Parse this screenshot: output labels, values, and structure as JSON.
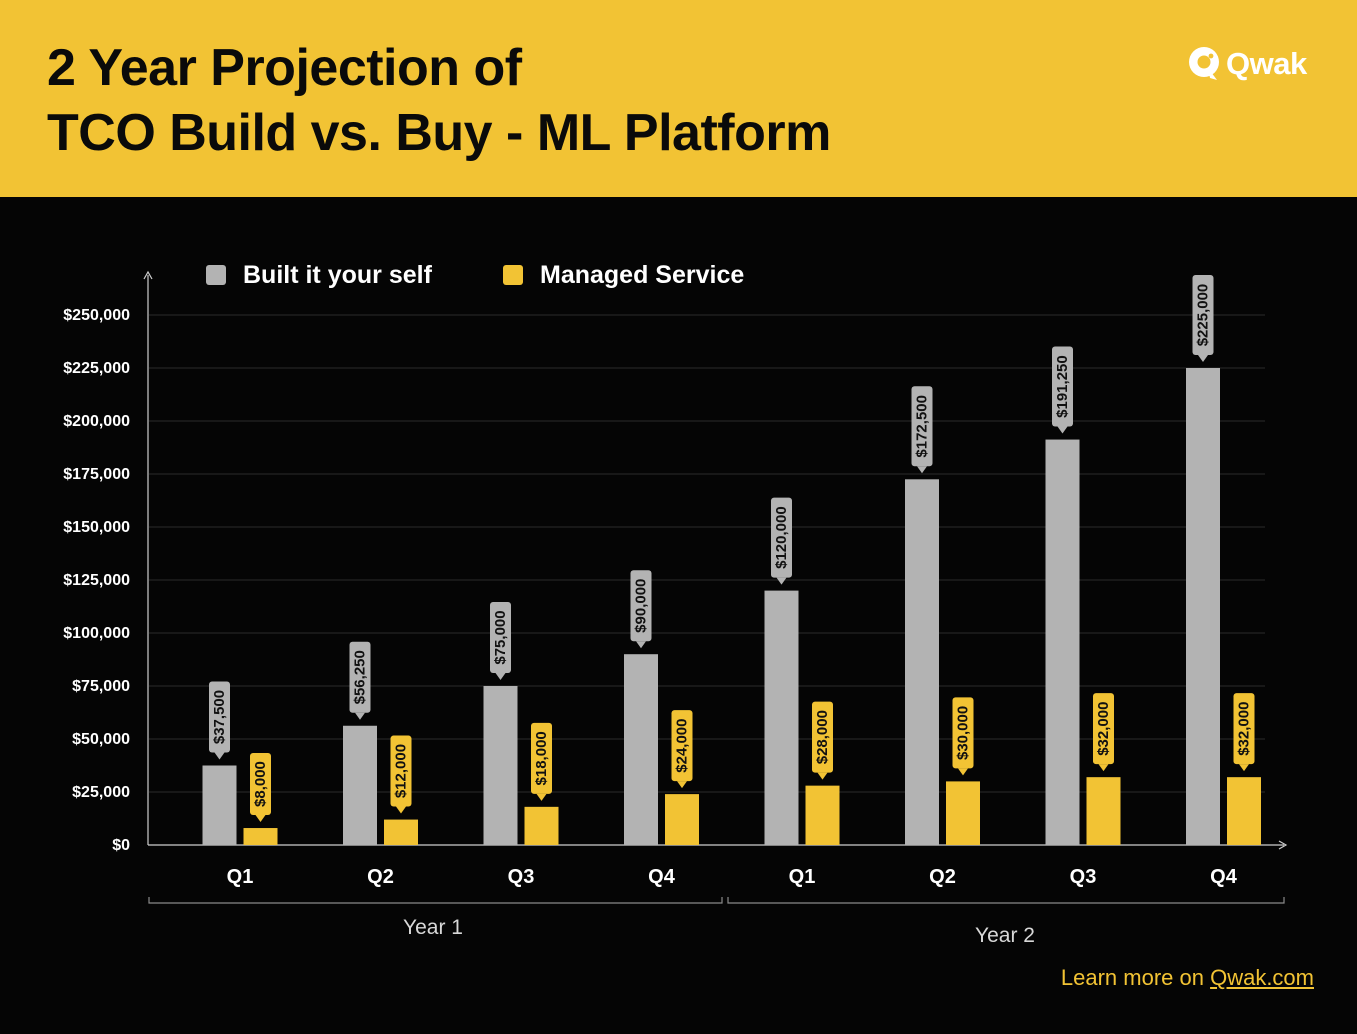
{
  "header": {
    "title_line1": "2 Year Projection of",
    "title_line2": "TCO Build vs. Buy - ML Platform",
    "logo_text": "Qwak"
  },
  "footer": {
    "prefix": "Learn more on ",
    "link_text": "Qwak.com"
  },
  "colors": {
    "header_bg": "#f2c334",
    "background": "#050505",
    "build": "#b3b3b3",
    "buy": "#f2c334"
  },
  "chart_data": {
    "type": "bar",
    "categories": [
      "Q1",
      "Q2",
      "Q3",
      "Q4",
      "Q1",
      "Q2",
      "Q3",
      "Q4"
    ],
    "groups": [
      {
        "label": "Year 1",
        "count": 4
      },
      {
        "label": "Year 2",
        "count": 4
      }
    ],
    "series": [
      {
        "name": "Built it your self",
        "color": "#b3b3b3",
        "values": [
          37500,
          56250,
          75000,
          90000,
          120000,
          172500,
          191250,
          225000
        ],
        "labels": [
          "$37,500",
          "$56,250",
          "$75,000",
          "$90,000",
          "$120,000",
          "$172,500",
          "$191,250",
          "$225,000"
        ]
      },
      {
        "name": "Managed Service",
        "color": "#f2c334",
        "values": [
          8000,
          12000,
          18000,
          24000,
          28000,
          30000,
          32000,
          32000
        ],
        "labels": [
          "$8,000",
          "$12,000",
          "$18,000",
          "$24,000",
          "$28,000",
          "$30,000",
          "$32,000",
          "$32,000"
        ]
      }
    ],
    "ylim": [
      0,
      250000
    ],
    "yticks": [
      {
        "value": 0,
        "label": "$0"
      },
      {
        "value": 25000,
        "label": "$25,000"
      },
      {
        "value": 50000,
        "label": "$50,000"
      },
      {
        "value": 75000,
        "label": "$75,000"
      },
      {
        "value": 100000,
        "label": "$100,000"
      },
      {
        "value": 125000,
        "label": "$125,000"
      },
      {
        "value": 150000,
        "label": "$150,000"
      },
      {
        "value": 175000,
        "label": "$175,000"
      },
      {
        "value": 200000,
        "label": "$200,000"
      },
      {
        "value": 225000,
        "label": "$225,000"
      },
      {
        "value": 250000,
        "label": "$250,000"
      }
    ],
    "grid": true,
    "legend_position": "top-left"
  }
}
